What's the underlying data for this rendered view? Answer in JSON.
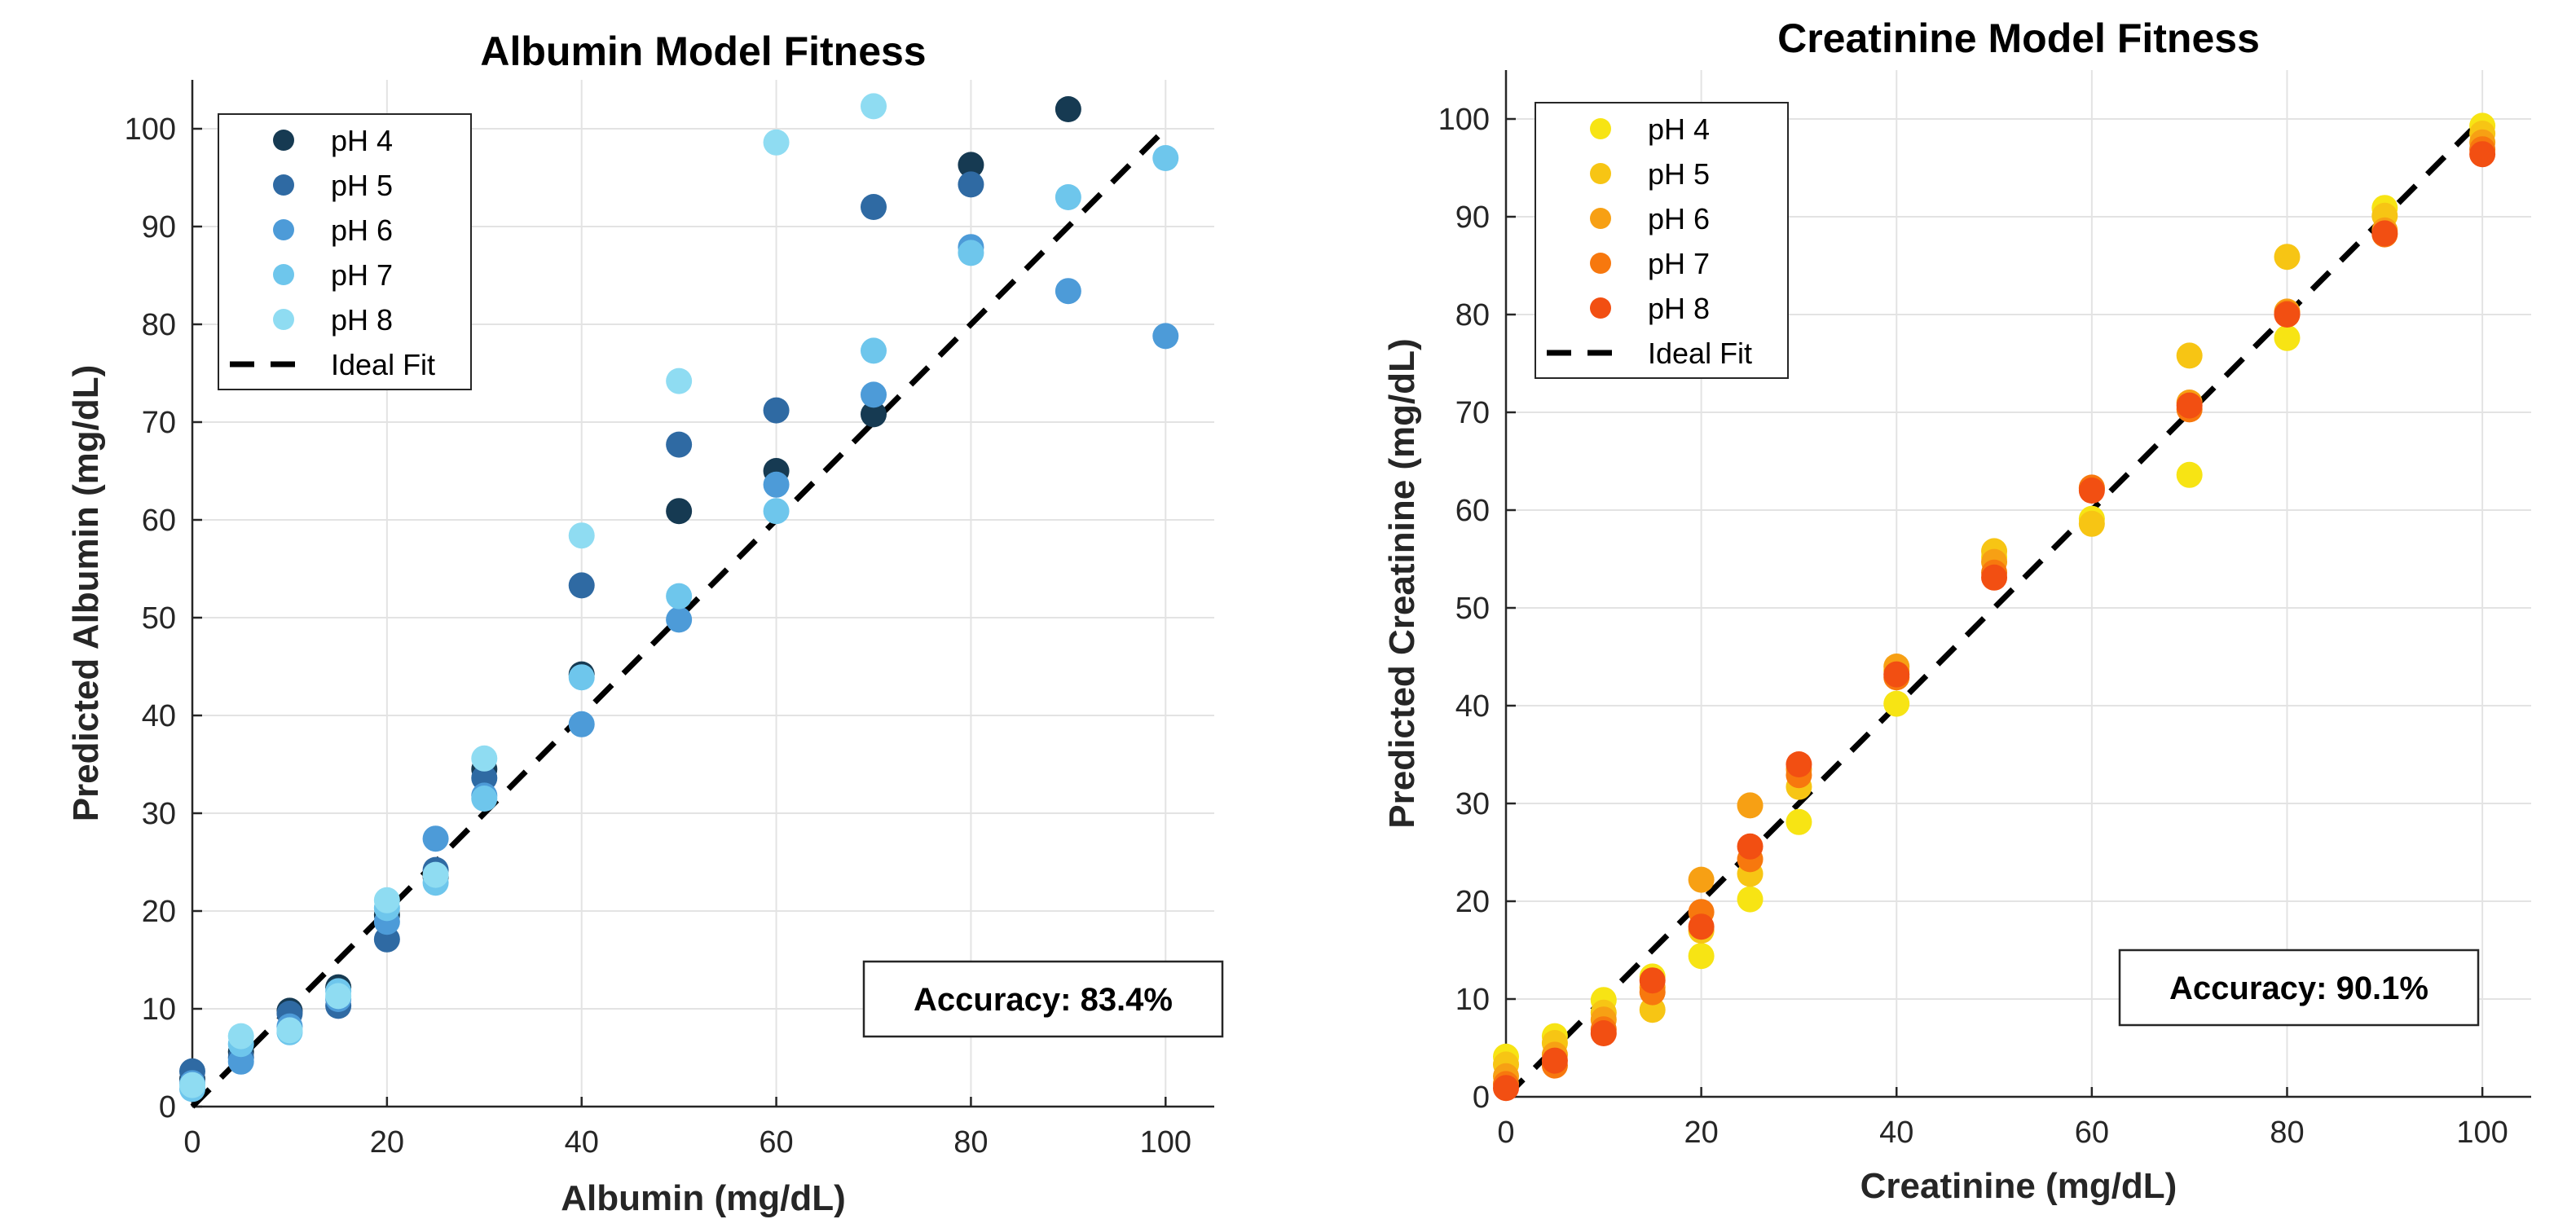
{
  "chart_data": [
    {
      "type": "scatter",
      "title": "Albumin Model Fitness",
      "xlabel": "Albumin (mg/dL)",
      "ylabel": "Predicted Albumin (mg/dL)",
      "xlim": [
        0,
        105
      ],
      "ylim": [
        0,
        105
      ],
      "xticks": [
        0,
        20,
        40,
        60,
        80,
        100
      ],
      "yticks": [
        0,
        10,
        20,
        30,
        40,
        50,
        60,
        70,
        80,
        90,
        100
      ],
      "grid": true,
      "legend_position": "top-left",
      "ideal_fit": {
        "name": "Ideal Fit",
        "x": [
          0,
          100
        ],
        "y": [
          0,
          100
        ],
        "color": "#000000",
        "style": "dashed"
      },
      "annotation": "Accuracy: 83.4%",
      "annotation_position": "bottom-right",
      "series": [
        {
          "name": "pH 4",
          "color": "#163a52",
          "x": [
            0,
            5,
            10,
            15,
            20,
            25,
            30,
            40,
            50,
            60,
            70,
            80,
            90
          ],
          "y": [
            2.8,
            5.6,
            9.8,
            12.2,
            19.6,
            23.5,
            34.5,
            44.2,
            60.9,
            65.0,
            70.8,
            96.3,
            102.0
          ]
        },
        {
          "name": "pH 5",
          "color": "#2f6aa3",
          "x": [
            0,
            5,
            10,
            15,
            20,
            25,
            30,
            40,
            50,
            60,
            70,
            80
          ],
          "y": [
            3.6,
            5.0,
            9.5,
            10.3,
            17.1,
            24.2,
            33.6,
            53.3,
            67.7,
            71.2,
            92.0,
            94.3
          ]
        },
        {
          "name": "pH 6",
          "color": "#4d9bd8",
          "x": [
            0,
            5,
            10,
            15,
            20,
            25,
            30,
            40,
            50,
            60,
            70,
            80,
            90,
            100
          ],
          "y": [
            2.4,
            4.6,
            8.2,
            11.0,
            18.9,
            27.4,
            31.8,
            39.1,
            49.8,
            63.6,
            72.8,
            87.9,
            83.4,
            78.8
          ]
        },
        {
          "name": "pH 7",
          "color": "#6ec6ec",
          "x": [
            0,
            5,
            10,
            15,
            20,
            25,
            30,
            40,
            50,
            60,
            70,
            80,
            90,
            100
          ],
          "y": [
            1.8,
            6.4,
            7.6,
            11.8,
            20.3,
            22.9,
            31.5,
            43.9,
            52.2,
            60.9,
            77.3,
            87.3,
            93.0,
            97.0
          ]
        },
        {
          "name": "pH 8",
          "color": "#8fdcf2",
          "x": [
            0,
            5,
            10,
            15,
            20,
            25,
            30,
            40,
            50,
            60,
            70
          ],
          "y": [
            2.2,
            7.2,
            7.8,
            11.3,
            21.1,
            23.7,
            35.6,
            58.4,
            74.2,
            98.6,
            102.3
          ]
        }
      ]
    },
    {
      "type": "scatter",
      "title": "Creatinine Model Fitness",
      "xlabel": "Creatinine (mg/dL)",
      "ylabel": "Predicted Creatinine (mg/dL)",
      "xlim": [
        0,
        105
      ],
      "ylim": [
        0,
        105
      ],
      "xticks": [
        0,
        20,
        40,
        60,
        80,
        100
      ],
      "yticks": [
        0,
        10,
        20,
        30,
        40,
        50,
        60,
        70,
        80,
        90,
        100
      ],
      "grid": true,
      "legend_position": "top-left",
      "ideal_fit": {
        "name": "Ideal Fit",
        "x": [
          0,
          100
        ],
        "y": [
          0,
          100
        ],
        "color": "#000000",
        "style": "dashed"
      },
      "annotation": "Accuracy: 90.1%",
      "annotation_position": "bottom-right",
      "series": [
        {
          "name": "pH 4",
          "color": "#f7e414",
          "x": [
            0,
            5,
            10,
            15,
            20,
            25,
            30,
            40,
            50,
            60,
            70,
            80,
            90,
            100
          ],
          "y": [
            4.1,
            6.2,
            9.9,
            12.3,
            14.4,
            20.2,
            28.1,
            40.2,
            55.2,
            59.1,
            63.6,
            77.6,
            90.9,
            99.3
          ]
        },
        {
          "name": "pH 5",
          "color": "#f7c514",
          "x": [
            0,
            5,
            10,
            15,
            20,
            25,
            30,
            40,
            50,
            60,
            70,
            80,
            90,
            100
          ],
          "y": [
            3.3,
            5.5,
            8.6,
            8.9,
            17.0,
            22.8,
            31.7,
            43.6,
            55.8,
            58.6,
            75.8,
            85.9,
            90.1,
            98.5
          ]
        },
        {
          "name": "pH 6",
          "color": "#f7a014",
          "x": [
            0,
            5,
            10,
            15,
            20,
            25,
            30,
            40,
            50,
            60,
            70,
            80,
            90,
            100
          ],
          "y": [
            2.1,
            4.3,
            7.9,
            11.2,
            22.2,
            29.8,
            33.5,
            44.0,
            54.7,
            62.2,
            71.0,
            80.3,
            88.6,
            97.6
          ]
        },
        {
          "name": "pH 7",
          "color": "#f7780e",
          "x": [
            0,
            5,
            10,
            15,
            20,
            25,
            30,
            40,
            50,
            60,
            70,
            80,
            90,
            100
          ],
          "y": [
            1.3,
            3.2,
            6.9,
            10.7,
            18.9,
            24.3,
            32.9,
            42.9,
            53.6,
            62.3,
            70.3,
            80.1,
            88.2,
            96.9
          ]
        },
        {
          "name": "pH 8",
          "color": "#f24f12",
          "x": [
            0,
            5,
            10,
            15,
            20,
            25,
            30,
            40,
            50,
            60,
            70,
            80,
            90,
            100
          ],
          "y": [
            0.9,
            3.7,
            6.5,
            11.9,
            17.4,
            25.6,
            34.0,
            43.2,
            53.1,
            62.0,
            70.7,
            80.0,
            88.3,
            96.4
          ]
        }
      ]
    }
  ]
}
